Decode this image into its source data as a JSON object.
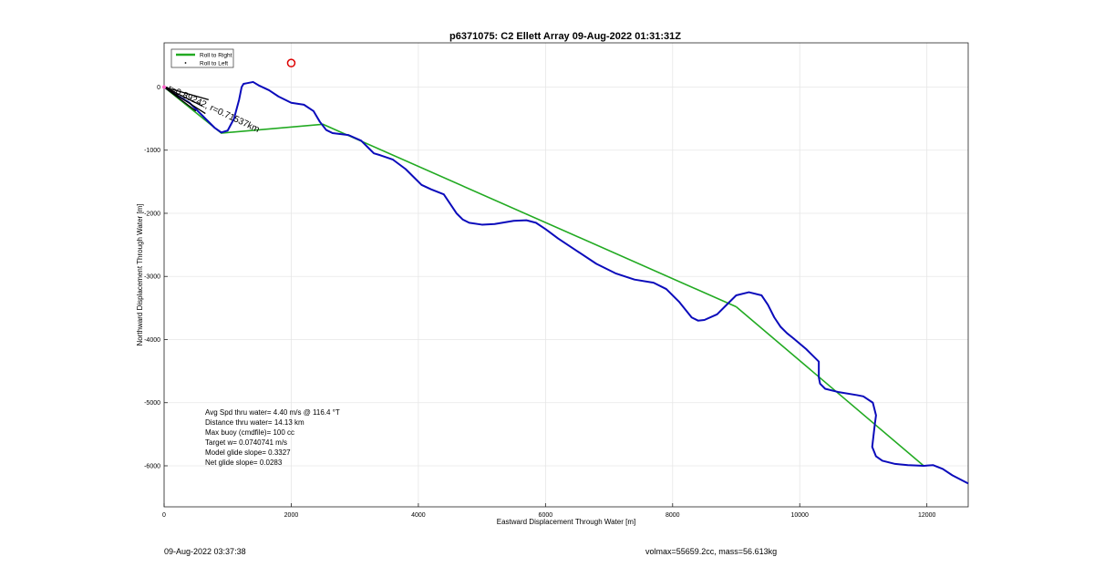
{
  "footer": {
    "left": "09-Aug-2022 03:37:38",
    "right": "volmax=55659.2cc, mass=56.613kg"
  },
  "chart_data": {
    "type": "line",
    "title": "p6371075: C2 Ellett Array 09-Aug-2022 01:31:31Z",
    "xlabel": "Eastward Displacement Through Water [m]",
    "ylabel": "Northward Displacement Through Water [m]",
    "xlim": [
      0,
      12650
    ],
    "ylim": [
      -6650,
      700
    ],
    "xticks": [
      0,
      2000,
      4000,
      6000,
      8000,
      10000,
      12000
    ],
    "yticks": [
      0,
      -1000,
      -2000,
      -3000,
      -4000,
      -5000,
      -6000
    ],
    "grid": true,
    "legend": {
      "placement": "top-left",
      "entries": [
        {
          "label": "Roll to Right",
          "color": "#22aa22",
          "marker": "line"
        },
        {
          "label": "Roll to Left",
          "color": "#000000",
          "marker": "dot"
        }
      ]
    },
    "series": [
      {
        "name": "Roll to Right",
        "color": "#22aa22",
        "x": [
          0,
          900,
          2500,
          9000
        ],
        "y": [
          0,
          -730,
          -590,
          -3480
        ],
        "x2": [
          9000,
          11950
        ],
        "y2": [
          -3480,
          -6000
        ]
      },
      {
        "color": "#0b0bbb",
        "x": [
          0,
          150,
          400,
          600,
          800,
          900,
          1000,
          1100,
          1180,
          1220,
          1250,
          1300,
          1400,
          1500,
          1650,
          1800,
          2000,
          2200,
          2350,
          2450,
          2550,
          2650,
          2900,
          3100,
          3200,
          3300,
          3400,
          3600,
          3800,
          3950,
          4050,
          4200,
          4400,
          4500,
          4600,
          4700,
          4800,
          5000,
          5200,
          5500,
          5700,
          5850,
          6000,
          6200,
          6500,
          6800,
          7100,
          7400,
          7700,
          7900,
          8100,
          8300,
          8400,
          8500,
          8700,
          8850,
          9000,
          9200,
          9400,
          9500,
          9600,
          9700,
          9800,
          9900,
          10100,
          10300,
          10300,
          10320,
          10400,
          10600,
          10900,
          11000,
          11150,
          11200,
          11180,
          11140,
          11200,
          11300,
          11500,
          11700,
          11950,
          12100,
          12250,
          12400,
          12650
        ],
        "y": [
          0,
          -100,
          -250,
          -450,
          -650,
          -720,
          -690,
          -500,
          -200,
          0,
          50,
          60,
          80,
          20,
          -50,
          -150,
          -250,
          -280,
          -380,
          -550,
          -680,
          -730,
          -760,
          -850,
          -950,
          -1050,
          -1080,
          -1150,
          -1300,
          -1450,
          -1550,
          -1620,
          -1700,
          -1850,
          -2000,
          -2100,
          -2150,
          -2180,
          -2170,
          -2120,
          -2110,
          -2150,
          -2250,
          -2400,
          -2600,
          -2800,
          -2950,
          -3050,
          -3100,
          -3200,
          -3400,
          -3650,
          -3700,
          -3690,
          -3600,
          -3450,
          -3300,
          -3250,
          -3300,
          -3450,
          -3650,
          -3800,
          -3900,
          -3980,
          -4150,
          -4350,
          -4600,
          -4700,
          -4780,
          -4830,
          -4880,
          -4900,
          -5000,
          -5200,
          -5350,
          -5700,
          -5850,
          -5920,
          -5970,
          -5990,
          -6000,
          -5990,
          -6050,
          -6150,
          -6280
        ]
      },
      {
        "name": "Roll to Left",
        "color": "#000000",
        "x": [
          0,
          700,
          0,
          600,
          0,
          500,
          0,
          650
        ],
        "y": [
          0,
          -200,
          0,
          -300,
          0,
          -380,
          0,
          -420
        ]
      }
    ],
    "markers": [
      {
        "x": 2000,
        "y": 380,
        "shape": "circle",
        "color": "#dd0000"
      }
    ],
    "annotation": {
      "text": "r=0.89242, r=0.71537km",
      "x": 50,
      "y": -50
    },
    "stats": [
      "Avg Spd thru water=  4.40 m/s @ 116.4 °T",
      "Distance thru water= 14.13 km",
      "Max buoy (cmdfile)= 100 cc",
      "Target w= 0.0740741 m/s",
      "Model glide slope= 0.3327",
      "Net glide slope= 0.0283"
    ]
  }
}
